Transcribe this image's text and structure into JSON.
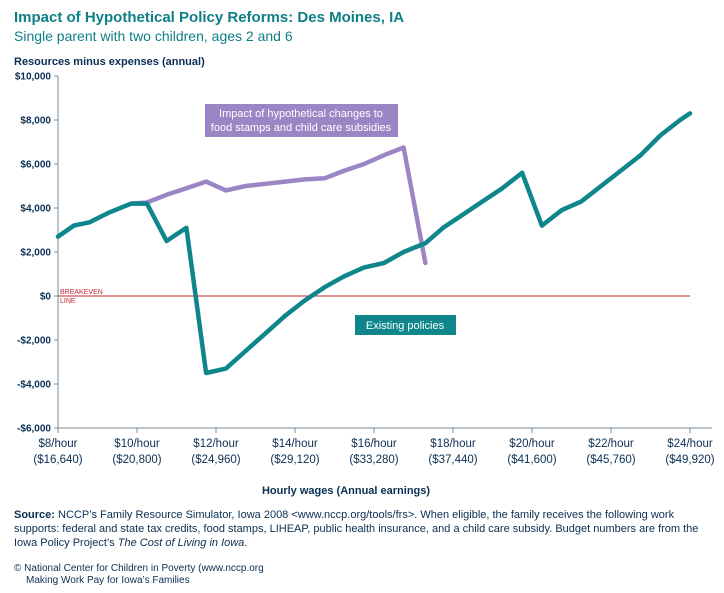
{
  "chart_data": {
    "type": "line",
    "title": "Impact of Hypothetical Policy Reforms: Des Moines, IA",
    "subtitle": "Single parent with two children, ages 2 and 6",
    "ylabel": "Resources minus expenses (annual)",
    "xlabel": "Hourly wages (Annual earnings)",
    "ylim": [
      -6000,
      10000
    ],
    "xlim": [
      8,
      24
    ],
    "y_ticks": [
      {
        "value": 10000,
        "label": "$10,000"
      },
      {
        "value": 8000,
        "label": "$8,000"
      },
      {
        "value": 6000,
        "label": "$6,000"
      },
      {
        "value": 4000,
        "label": "$4,000"
      },
      {
        "value": 2000,
        "label": "$2,000"
      },
      {
        "value": 0,
        "label": "$0"
      },
      {
        "value": -2000,
        "label": "-$2,000"
      },
      {
        "value": -4000,
        "label": "-$4,000"
      },
      {
        "value": -6000,
        "label": "-$6,000"
      }
    ],
    "x_ticks": [
      {
        "value": 8,
        "label": "$8/hour",
        "sublabel": "($16,640)"
      },
      {
        "value": 10,
        "label": "$10/hour",
        "sublabel": "($20,800)"
      },
      {
        "value": 12,
        "label": "$12/hour",
        "sublabel": "($24,960)"
      },
      {
        "value": 14,
        "label": "$14/hour",
        "sublabel": "($29,120)"
      },
      {
        "value": 16,
        "label": "$16/hour",
        "sublabel": "($33,280)"
      },
      {
        "value": 18,
        "label": "$18/hour",
        "sublabel": "($37,440)"
      },
      {
        "value": 20,
        "label": "$20/hour",
        "sublabel": "($41,600)"
      },
      {
        "value": 22,
        "label": "$22/hour",
        "sublabel": "($45,760)"
      },
      {
        "value": 24,
        "label": "$24/hour",
        "sublabel": "($49,920)"
      }
    ],
    "breakeven_label": [
      "BREAKEVEN",
      "LINE"
    ],
    "grid": false,
    "series": [
      {
        "name": "Impact of hypothetical changes to food stamps and child care subsidies",
        "color": "#9b85c4",
        "x": [
          9.85,
          10.25,
          10.75,
          11.25,
          11.75,
          12.25,
          12.75,
          13.25,
          13.75,
          14.25,
          14.75,
          15.25,
          15.75,
          16.25,
          16.75,
          17.3
        ],
        "y": [
          4200,
          4250,
          4600,
          4900,
          5200,
          4800,
          5000,
          5100,
          5200,
          5300,
          5350,
          5700,
          6000,
          6400,
          6750,
          1500
        ]
      },
      {
        "name": "Existing policies",
        "color": "#0f868c",
        "x": [
          8,
          8.4,
          8.8,
          9.3,
          9.85,
          10.25,
          10.75,
          11.25,
          11.75,
          12.25,
          12.75,
          13.25,
          13.75,
          14.25,
          14.75,
          15.25,
          15.75,
          16.25,
          16.75,
          17.3,
          17.75,
          18.25,
          18.75,
          19.25,
          19.75,
          20.25,
          20.75,
          21.25,
          21.75,
          22.25,
          22.75,
          23.25,
          23.75,
          24
        ],
        "y": [
          2700,
          3200,
          3350,
          3800,
          4200,
          4200,
          2500,
          3100,
          -3500,
          -3300,
          -2500,
          -1700,
          -900,
          -200,
          400,
          900,
          1300,
          1500,
          2000,
          2400,
          3100,
          3700,
          4300,
          4900,
          5600,
          3200,
          3900,
          4300,
          5000,
          5700,
          6400,
          7300,
          8000,
          8300
        ]
      }
    ],
    "annotations": [
      {
        "text_lines": [
          "Impact of hypothetical changes to",
          "food stamps and child care subsidies"
        ],
        "color": "#9b85c4"
      },
      {
        "text_lines": [
          "Existing policies"
        ],
        "color": "#0f868c"
      }
    ]
  },
  "source": {
    "label": "Source:",
    "text_before_italic": " NCCP’s Family Resource Simulator, Iowa 2008 <www.nccp.org/tools/frs>. When eligible, the family receives the following work supports: federal and state tax credits, food stamps, LIHEAP, public health insurance, and a child care subsidy.  Budget numbers are from the Iowa Policy Project’s ",
    "italic": "The Cost of Living in Iowa",
    "text_after_italic": "."
  },
  "copyright": {
    "symbol": "©",
    "line1": "National Center for Children in Poverty (www.nccp.org",
    "line2": "Making Work Pay for Iowa’s Families"
  }
}
